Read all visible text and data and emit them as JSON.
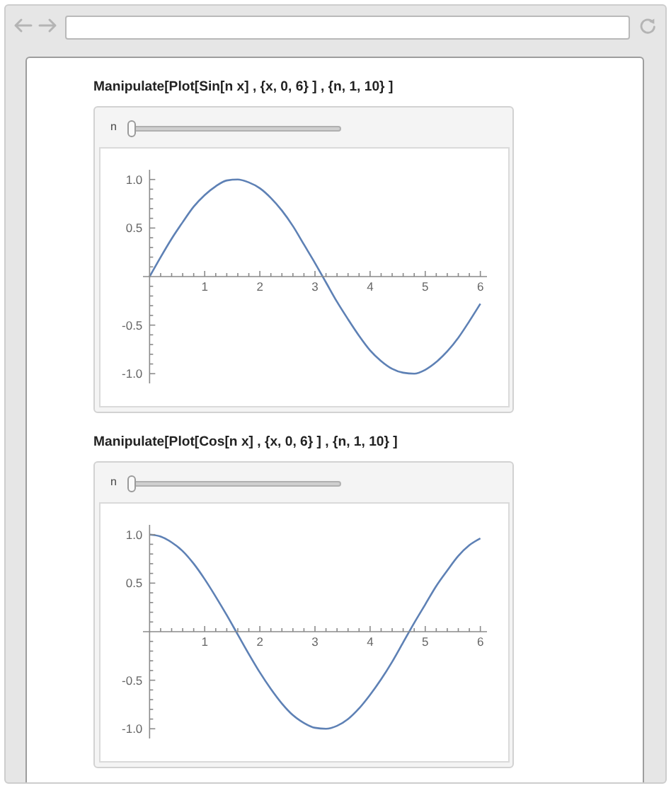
{
  "chart_data": [
    {
      "type": "line",
      "title": "Manipulate[Plot[Sin[n x] , {x, 0, 6} ] , {n, 1, 10} ]",
      "annotations": [
        "n"
      ],
      "x": [
        0,
        0.2,
        0.4,
        0.6,
        0.8,
        1,
        1.2,
        1.4,
        1.6,
        1.8,
        2,
        2.2,
        2.4,
        2.6,
        2.8,
        3,
        3.2,
        3.4,
        3.6,
        3.8,
        4,
        4.2,
        4.4,
        4.6,
        4.8,
        5,
        5.2,
        5.4,
        5.6,
        5.8,
        6
      ],
      "series": [
        {
          "color": "#5e81b5",
          "values": [
            0,
            0.2,
            0.39,
            0.56,
            0.72,
            0.84,
            0.93,
            0.99,
            1,
            0.97,
            0.91,
            0.81,
            0.68,
            0.52,
            0.33,
            0.14,
            -0.06,
            -0.26,
            -0.44,
            -0.61,
            -0.76,
            -0.87,
            -0.95,
            -0.99,
            -1,
            -0.96,
            -0.88,
            -0.77,
            -0.63,
            -0.46,
            -0.28
          ]
        }
      ],
      "xlim": [
        -0.12,
        6.12
      ],
      "ylim": [
        -1.1,
        1.1
      ],
      "xticks": [
        {
          "value": 0.2,
          "label": null
        },
        {
          "value": 0.4,
          "label": null
        },
        {
          "value": 0.6,
          "label": null
        },
        {
          "value": 0.8,
          "label": null
        },
        1,
        {
          "value": 1.2,
          "label": null
        },
        {
          "value": 1.4,
          "label": null
        },
        {
          "value": 1.6,
          "label": null
        },
        {
          "value": 1.8,
          "label": null
        },
        2,
        {
          "value": 2.2,
          "label": null
        },
        {
          "value": 2.4,
          "label": null
        },
        {
          "value": 2.6,
          "label": null
        },
        {
          "value": 2.8,
          "label": null
        },
        3,
        {
          "value": 3.2,
          "label": null
        },
        {
          "value": 3.4,
          "label": null
        },
        {
          "value": 3.6,
          "label": null
        },
        {
          "value": 3.8,
          "label": null
        },
        4,
        {
          "value": 4.2,
          "label": null
        },
        {
          "value": 4.4,
          "label": null
        },
        {
          "value": 4.6,
          "label": null
        },
        {
          "value": 4.8,
          "label": null
        },
        5,
        {
          "value": 5.2,
          "label": null
        },
        {
          "value": 5.4,
          "label": null
        },
        {
          "value": 5.6,
          "label": null
        },
        {
          "value": 5.8,
          "label": null
        },
        6
      ],
      "yticks": [
        {
          "value": -1,
          "label": "-1.0"
        },
        {
          "value": -0.9,
          "label": null
        },
        {
          "value": -0.8,
          "label": null
        },
        {
          "value": -0.7,
          "label": null
        },
        {
          "value": -0.6,
          "label": null
        },
        {
          "value": -0.5,
          "label": "-0.5"
        },
        {
          "value": -0.4,
          "label": null
        },
        {
          "value": -0.3,
          "label": null
        },
        {
          "value": -0.2,
          "label": null
        },
        {
          "value": -0.1,
          "label": null
        },
        {
          "value": 0.1,
          "label": null
        },
        {
          "value": 0.2,
          "label": null
        },
        {
          "value": 0.3,
          "label": null
        },
        {
          "value": 0.4,
          "label": null
        },
        {
          "value": 0.5,
          "label": "0.5"
        },
        {
          "value": 0.6,
          "label": null
        },
        {
          "value": 0.7,
          "label": null
        },
        {
          "value": 0.8,
          "label": null
        },
        {
          "value": 0.9,
          "label": null
        },
        {
          "value": 1,
          "label": "1.0"
        }
      ],
      "marker": "none",
      "line_style": "solid"
    },
    {
      "type": "line",
      "title": "Manipulate[Plot[Cos[n x] , {x, 0, 6} ] , {n, 1, 10} ]",
      "annotations": [
        "n"
      ],
      "x": [
        0,
        0.2,
        0.4,
        0.6,
        0.8,
        1,
        1.2,
        1.4,
        1.6,
        1.8,
        2,
        2.2,
        2.4,
        2.6,
        2.8,
        3,
        3.2,
        3.4,
        3.6,
        3.8,
        4,
        4.2,
        4.4,
        4.6,
        4.8,
        5,
        5.2,
        5.4,
        5.6,
        5.8,
        6
      ],
      "series": [
        {
          "color": "#5e81b5",
          "values": [
            1,
            0.98,
            0.92,
            0.83,
            0.7,
            0.54,
            0.36,
            0.17,
            -0.03,
            -0.23,
            -0.42,
            -0.59,
            -0.74,
            -0.86,
            -0.94,
            -0.99,
            -1,
            -0.97,
            -0.9,
            -0.79,
            -0.65,
            -0.49,
            -0.31,
            -0.11,
            0.09,
            0.28,
            0.47,
            0.63,
            0.78,
            0.89,
            0.96
          ]
        }
      ],
      "xlim": [
        -0.12,
        6.12
      ],
      "ylim": [
        -1.1,
        1.1
      ],
      "xticks": [
        {
          "value": 0.2,
          "label": null
        },
        {
          "value": 0.4,
          "label": null
        },
        {
          "value": 0.6,
          "label": null
        },
        {
          "value": 0.8,
          "label": null
        },
        1,
        {
          "value": 1.2,
          "label": null
        },
        {
          "value": 1.4,
          "label": null
        },
        {
          "value": 1.6,
          "label": null
        },
        {
          "value": 1.8,
          "label": null
        },
        2,
        {
          "value": 2.2,
          "label": null
        },
        {
          "value": 2.4,
          "label": null
        },
        {
          "value": 2.6,
          "label": null
        },
        {
          "value": 2.8,
          "label": null
        },
        3,
        {
          "value": 3.2,
          "label": null
        },
        {
          "value": 3.4,
          "label": null
        },
        {
          "value": 3.6,
          "label": null
        },
        {
          "value": 3.8,
          "label": null
        },
        4,
        {
          "value": 4.2,
          "label": null
        },
        {
          "value": 4.4,
          "label": null
        },
        {
          "value": 4.6,
          "label": null
        },
        {
          "value": 4.8,
          "label": null
        },
        5,
        {
          "value": 5.2,
          "label": null
        },
        {
          "value": 5.4,
          "label": null
        },
        {
          "value": 5.6,
          "label": null
        },
        {
          "value": 5.8,
          "label": null
        },
        6
      ],
      "yticks": [
        {
          "value": -1,
          "label": "-1.0"
        },
        {
          "value": -0.9,
          "label": null
        },
        {
          "value": -0.8,
          "label": null
        },
        {
          "value": -0.7,
          "label": null
        },
        {
          "value": -0.6,
          "label": null
        },
        {
          "value": -0.5,
          "label": "-0.5"
        },
        {
          "value": -0.4,
          "label": null
        },
        {
          "value": -0.3,
          "label": null
        },
        {
          "value": -0.2,
          "label": null
        },
        {
          "value": -0.1,
          "label": null
        },
        {
          "value": 0.1,
          "label": null
        },
        {
          "value": 0.2,
          "label": null
        },
        {
          "value": 0.3,
          "label": null
        },
        {
          "value": 0.4,
          "label": null
        },
        {
          "value": 0.5,
          "label": "0.5"
        },
        {
          "value": 0.6,
          "label": null
        },
        {
          "value": 0.7,
          "label": null
        },
        {
          "value": 0.8,
          "label": null
        },
        {
          "value": 0.9,
          "label": null
        },
        {
          "value": 1,
          "label": "1.0"
        }
      ],
      "marker": "none",
      "line_style": "solid"
    }
  ]
}
